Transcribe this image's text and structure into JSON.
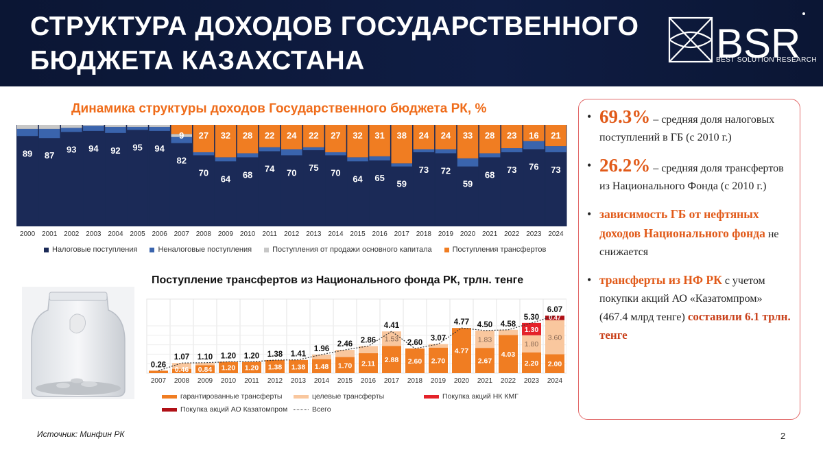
{
  "header": {
    "title_line1": "СТРУКТУРА ДОХОДОВ ГОСУДАРСТВЕННОГО",
    "title_line2": "БЮДЖЕТА КАЗАХСТАНА",
    "logo_text": "BSR",
    "logo_subtitle": "BEST SOLUTION RESEARCH"
  },
  "chart_data": [
    {
      "type": "bar",
      "stacked": true,
      "title": "Динамика структуры доходов Государственного бюджета РК, %",
      "categories": [
        "2000",
        "2001",
        "2002",
        "2003",
        "2004",
        "2005",
        "2006",
        "2007",
        "2008",
        "2009",
        "2010",
        "2011",
        "2012",
        "2013",
        "2014",
        "2015",
        "2016",
        "2017",
        "2018",
        "2019",
        "2020",
        "2021",
        "2022",
        "2023",
        "2024"
      ],
      "series": [
        {
          "name": "Налоговые поступления",
          "color": "#1b2a57",
          "values": [
            89,
            87,
            93,
            94,
            92,
            95,
            94,
            82,
            70,
            64,
            68,
            74,
            70,
            75,
            70,
            64,
            65,
            59,
            73,
            72,
            59,
            68,
            73,
            76,
            73
          ]
        },
        {
          "name": "Неналоговые поступления",
          "color": "#3a64ad",
          "values": [
            7,
            9,
            4,
            5,
            6,
            3,
            4,
            6,
            3,
            4,
            4,
            4,
            6,
            3,
            3,
            4,
            4,
            3,
            3,
            4,
            8,
            4,
            4,
            8,
            6
          ]
        },
        {
          "name": "Поступления от продажи основного капитала",
          "color": "#c7c7c7",
          "values": [
            4,
            4,
            3,
            1,
            2,
            2,
            2,
            3,
            0,
            0,
            0,
            0,
            0,
            0,
            0,
            0,
            0,
            0,
            0,
            0,
            0,
            0,
            0,
            0,
            0
          ]
        },
        {
          "name": "Поступления трансфертов",
          "color": "#f07d22",
          "values": [
            0,
            0,
            0,
            0,
            0,
            0,
            0,
            9,
            27,
            32,
            28,
            22,
            24,
            22,
            27,
            32,
            31,
            38,
            24,
            24,
            33,
            28,
            23,
            16,
            21
          ]
        }
      ],
      "data_labels": {
        "tax": [
          "89",
          "87",
          "93",
          "94",
          "92",
          "95",
          "94",
          "82",
          "70",
          "64",
          "68",
          "74",
          "70",
          "75",
          "70",
          "64",
          "65",
          "59",
          "73",
          "72",
          "59",
          "68",
          "73",
          "76",
          "73"
        ],
        "transfer": [
          "",
          "",
          "",
          "",
          "",
          "",
          "",
          "9",
          "27",
          "32",
          "28",
          "22",
          "24",
          "22",
          "27",
          "32",
          "31",
          "38",
          "24",
          "24",
          "33",
          "28",
          "23",
          "16",
          "21"
        ]
      },
      "ylim": [
        0,
        100
      ],
      "legend_position": "bottom"
    },
    {
      "type": "bar",
      "stacked": true,
      "title": "Поступление трансфертов из Национального фонда РК, трлн. тенге",
      "categories": [
        "2007",
        "2008",
        "2009",
        "2010",
        "2011",
        "2012",
        "2013",
        "2014",
        "2015",
        "2016",
        "2017",
        "2018",
        "2019",
        "2020",
        "2021",
        "2022",
        "2023",
        "2024"
      ],
      "series": [
        {
          "name": "гарантированные трансферты",
          "color": "#f07d22",
          "values": [
            0.26,
            0.46,
            0.84,
            1.2,
            1.2,
            1.38,
            1.38,
            1.48,
            1.7,
            2.11,
            2.88,
            2.6,
            2.7,
            4.77,
            2.67,
            4.03,
            2.2,
            2.0
          ]
        },
        {
          "name": "целевые трансферты",
          "color": "#f9c79e",
          "values": [
            0,
            0.61,
            0.26,
            0,
            0,
            0,
            0.03,
            0.48,
            0.76,
            0.75,
            1.53,
            0,
            0.37,
            0,
            1.83,
            0.55,
            1.8,
            3.6
          ]
        },
        {
          "name": "Покупка акций НК КМГ",
          "color": "#e4222a",
          "values": [
            0,
            0,
            0,
            0,
            0,
            0,
            0,
            0,
            0,
            0,
            0,
            0,
            0,
            0,
            0,
            0,
            1.3,
            0
          ]
        },
        {
          "name": "Покупка акций АО Казатомпром",
          "color": "#b01016",
          "values": [
            0,
            0,
            0,
            0,
            0,
            0,
            0,
            0,
            0,
            0,
            0,
            0,
            0,
            0,
            0,
            0,
            0,
            0.47
          ]
        }
      ],
      "totals": {
        "name": "Всего",
        "values": [
          0.26,
          1.07,
          1.1,
          1.2,
          1.2,
          1.38,
          1.41,
          1.96,
          2.46,
          2.86,
          4.41,
          2.6,
          3.07,
          4.77,
          4.5,
          4.58,
          5.3,
          6.07
        ],
        "labels": [
          "0.26",
          "1.07",
          "1.10",
          "1.20",
          "1.20",
          "1.38",
          "1.41",
          "1.96",
          "2.46",
          "2.86",
          "4.41",
          "2.60",
          "3.07",
          "4.77",
          "4.50",
          "4.58",
          "5.30",
          "6.07"
        ]
      },
      "data_labels": {
        "guaranteed": [
          "",
          "0.46",
          "0.84",
          "1.20",
          "1.20",
          "1.38",
          "1.38",
          "1.48",
          "1.70",
          "2.11",
          "2.88",
          "2.60",
          "2.70",
          "4.77",
          "2.67",
          "4.03",
          "2.20",
          "2.00"
        ],
        "targeted": {
          "2017": "1.53",
          "2021": "1.83",
          "2023": "1.80",
          "2024": "3.60"
        },
        "kmg": {
          "2023": "1.30"
        },
        "kazatomprom": {
          "2024": "0.47"
        }
      },
      "ylim": [
        0,
        6.5
      ],
      "legend_position": "bottom"
    }
  ],
  "panel": {
    "b1_value": "69.3%",
    "b1_text": " – средняя доля налоговых поступлений в ГБ (с 2010 г.)",
    "b2_value": "26.2%",
    "b2_text": " – средняя доля трансфертов из Национального Фонда (с 2010 г.)",
    "b3_highlight": "зависимость ГБ от нефтяных доходов Национального фонда",
    "b3_text": " не снижается",
    "b4_highlight1": "трансферты из НФ РК",
    "b4_text": " с учетом покупки акций АО «Казатомпром» (467.4 млрд тенге) ",
    "b4_highlight2": "составили 6.1 трлн. тенге"
  },
  "footer": {
    "source": "Источник: Минфин РК",
    "page": "2"
  }
}
